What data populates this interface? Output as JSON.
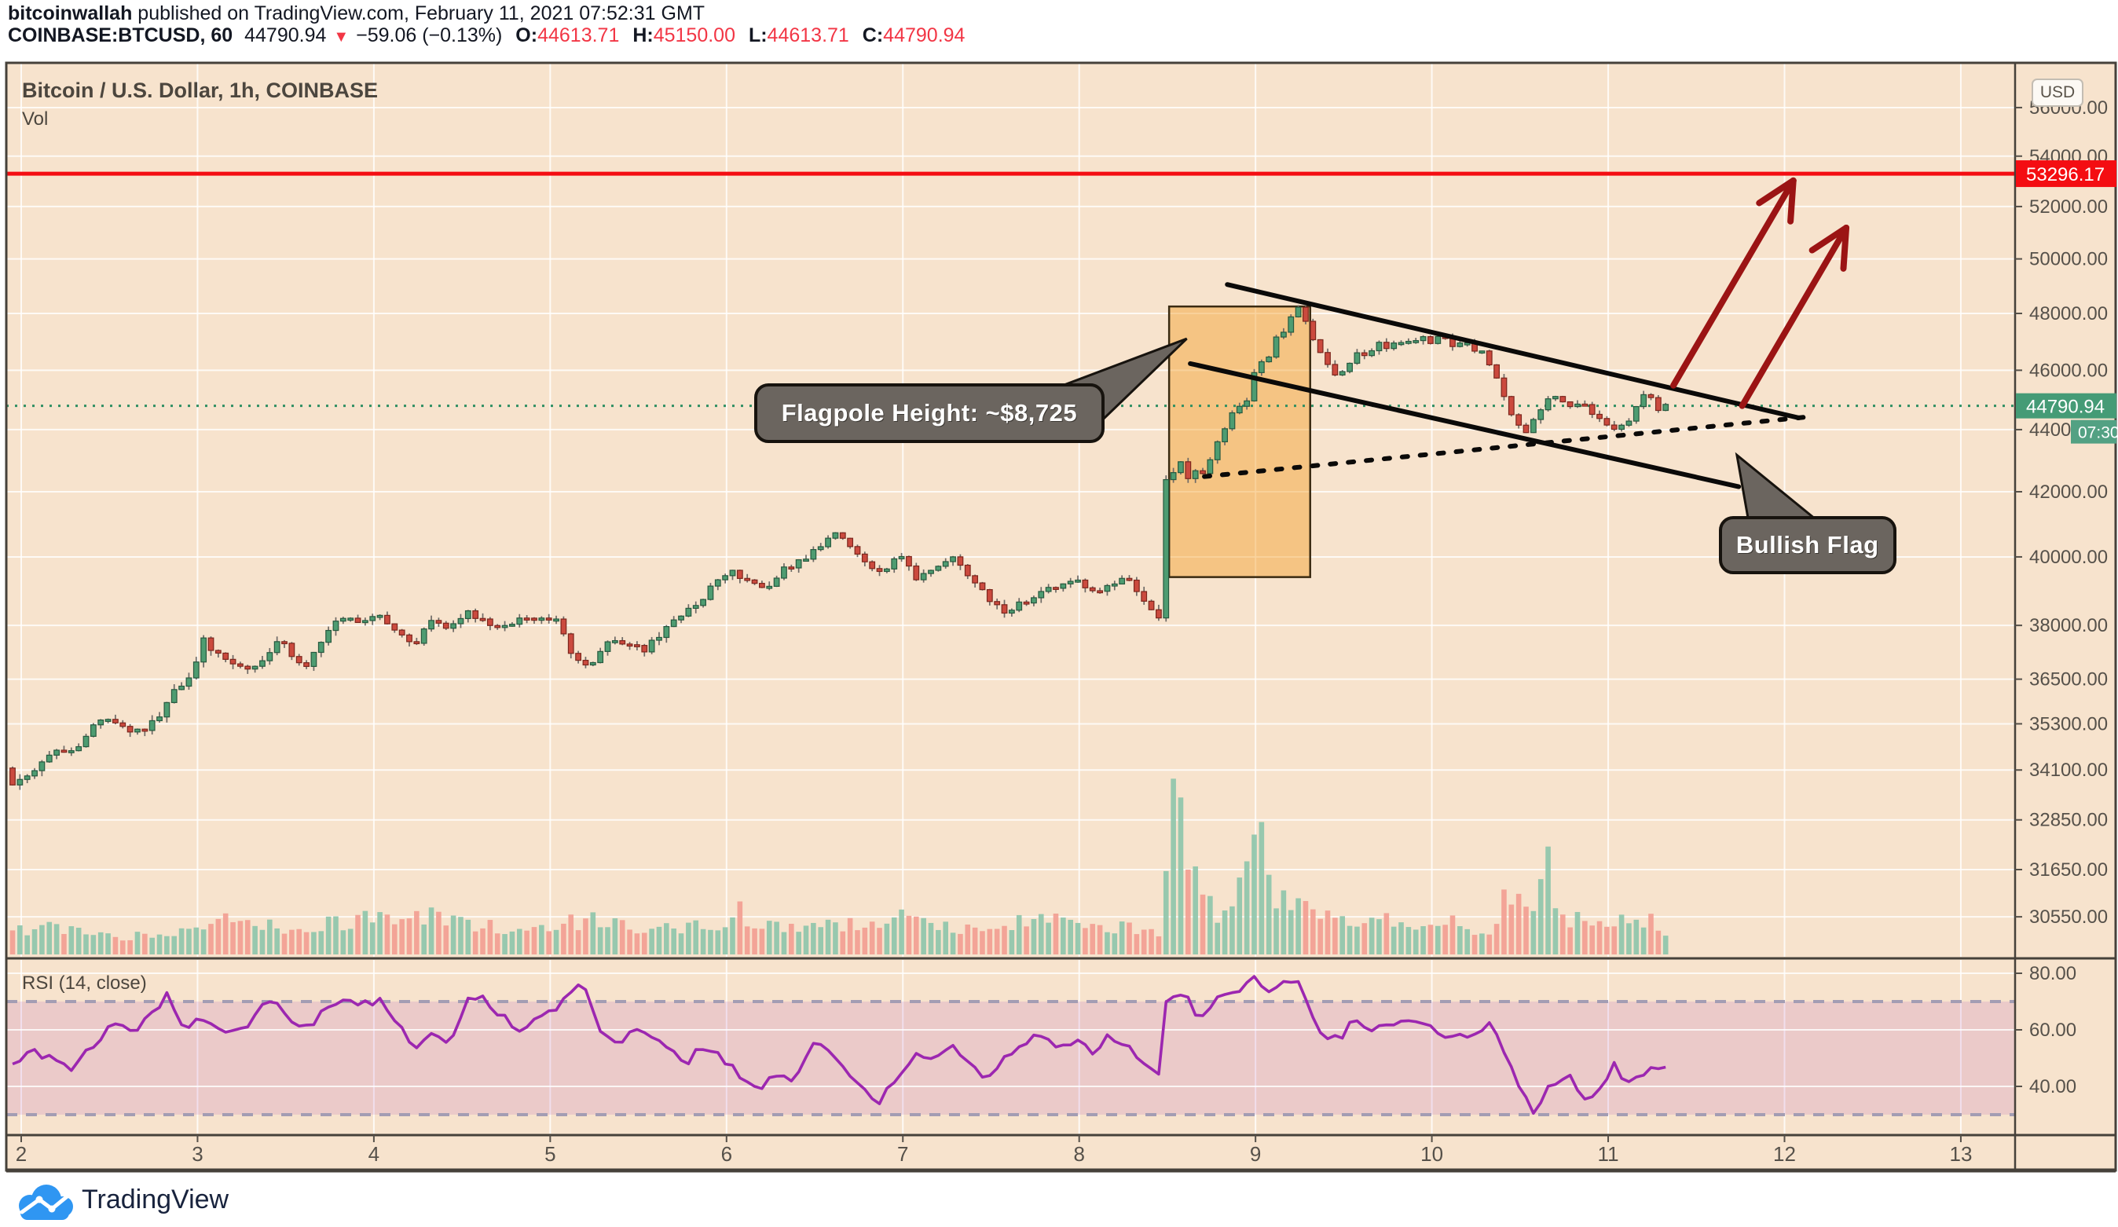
{
  "header": {
    "author": "bitcoinwallah",
    "published": " published on TradingView.com, February 11, 2021 07:52:31 GMT",
    "symbol": "COINBASE:BTCUSD, 60",
    "last": "44790.94",
    "direction": "▼",
    "change": "−59.06 (−0.13%)",
    "ohlc": [
      {
        "k": "O:",
        "v": "44613.71"
      },
      {
        "k": "H:",
        "v": "45150.00"
      },
      {
        "k": "L:",
        "v": "44613.71"
      },
      {
        "k": "C:",
        "v": "44790.94"
      }
    ]
  },
  "chart": {
    "title": "Bitcoin / U.S. Dollar, 1h, COINBASE",
    "vol_label": "Vol",
    "currency_button": "USD",
    "rsi_label": "RSI (14, close)",
    "last_price_label": "44790.94",
    "countdown": "07:30",
    "red_line_label": "53296.17"
  },
  "axes": {
    "price_ticks": [
      {
        "label": "56000.00",
        "price": 56000
      },
      {
        "label": "54000.00",
        "price": 54000
      },
      {
        "label": "52000.00",
        "price": 52000
      },
      {
        "label": "50000.00",
        "price": 50000
      },
      {
        "label": "48000.00",
        "price": 48000
      },
      {
        "label": "46000.00",
        "price": 46000
      },
      {
        "label": "44000.00",
        "price": 44000
      },
      {
        "label": "42000.00",
        "price": 42000
      },
      {
        "label": "40000.00",
        "price": 40000
      },
      {
        "label": "38000.00",
        "price": 38000
      },
      {
        "label": "36500.00",
        "price": 36500
      },
      {
        "label": "35300.00",
        "price": 35300
      },
      {
        "label": "34100.00",
        "price": 34100
      },
      {
        "label": "32850.00",
        "price": 32850
      },
      {
        "label": "31650.00",
        "price": 31650
      },
      {
        "label": "30550.00",
        "price": 30550
      }
    ],
    "time_ticks": [
      {
        "label": "2",
        "day": 2
      },
      {
        "label": "3",
        "day": 3
      },
      {
        "label": "4",
        "day": 4
      },
      {
        "label": "5",
        "day": 5
      },
      {
        "label": "6",
        "day": 6
      },
      {
        "label": "7",
        "day": 7
      },
      {
        "label": "8",
        "day": 8
      },
      {
        "label": "9",
        "day": 9
      },
      {
        "label": "10",
        "day": 10
      },
      {
        "label": "11",
        "day": 11
      },
      {
        "label": "12",
        "day": 12
      },
      {
        "label": "13",
        "day": 13
      }
    ],
    "rsi_ticks": [
      {
        "label": "80.00",
        "value": 80
      },
      {
        "label": "60.00",
        "value": 60
      },
      {
        "label": "40.00",
        "value": 40
      }
    ]
  },
  "chart_data": {
    "type": "candlestick+volume+rsi",
    "symbol": "COINBASE:BTCUSD",
    "timeframe": "1h",
    "x_axis": {
      "unit": "day of February 2021",
      "range": [
        2,
        13
      ],
      "candles_start": 1.93,
      "candles_end": 11.34
    },
    "y_axis": {
      "scale": "log",
      "visible_range": [
        30000,
        56800
      ]
    },
    "levels": {
      "resistance": 53296.17,
      "last_price": 44790.94,
      "rsi_band": [
        30,
        70
      ]
    },
    "price_path_keypoints": [
      [
        1.93,
        34150
      ],
      [
        1.97,
        33750
      ],
      [
        2.0,
        33900
      ],
      [
        2.1,
        34100
      ],
      [
        2.2,
        34600
      ],
      [
        2.3,
        34500
      ],
      [
        2.45,
        35400
      ],
      [
        2.55,
        35300
      ],
      [
        2.7,
        35050
      ],
      [
        2.8,
        35500
      ],
      [
        2.9,
        36300
      ],
      [
        3.0,
        36600
      ],
      [
        3.05,
        37750
      ],
      [
        3.1,
        37300
      ],
      [
        3.2,
        36900
      ],
      [
        3.3,
        36700
      ],
      [
        3.4,
        37100
      ],
      [
        3.5,
        37650
      ],
      [
        3.55,
        37100
      ],
      [
        3.65,
        36900
      ],
      [
        3.75,
        37800
      ],
      [
        3.85,
        38250
      ],
      [
        3.95,
        38050
      ],
      [
        4.05,
        38300
      ],
      [
        4.15,
        37900
      ],
      [
        4.25,
        37350
      ],
      [
        4.35,
        38250
      ],
      [
        4.45,
        37900
      ],
      [
        4.55,
        38400
      ],
      [
        4.65,
        38100
      ],
      [
        4.75,
        37900
      ],
      [
        4.85,
        38200
      ],
      [
        4.95,
        38100
      ],
      [
        5.05,
        38300
      ],
      [
        5.15,
        37000
      ],
      [
        5.25,
        36800
      ],
      [
        5.35,
        37600
      ],
      [
        5.45,
        37500
      ],
      [
        5.55,
        37300
      ],
      [
        5.65,
        37800
      ],
      [
        5.75,
        38200
      ],
      [
        5.85,
        38600
      ],
      [
        5.95,
        39200
      ],
      [
        6.05,
        39650
      ],
      [
        6.15,
        39200
      ],
      [
        6.25,
        39000
      ],
      [
        6.35,
        39650
      ],
      [
        6.45,
        39900
      ],
      [
        6.55,
        40350
      ],
      [
        6.65,
        40700
      ],
      [
        6.7,
        40350
      ],
      [
        6.8,
        39900
      ],
      [
        6.9,
        39550
      ],
      [
        7.0,
        40050
      ],
      [
        7.1,
        39350
      ],
      [
        7.2,
        39700
      ],
      [
        7.3,
        40000
      ],
      [
        7.4,
        39350
      ],
      [
        7.5,
        38800
      ],
      [
        7.6,
        38350
      ],
      [
        7.7,
        38650
      ],
      [
        7.8,
        38950
      ],
      [
        7.9,
        39150
      ],
      [
        8.0,
        39350
      ],
      [
        8.1,
        38950
      ],
      [
        8.2,
        39200
      ],
      [
        8.3,
        39400
      ],
      [
        8.4,
        38600
      ],
      [
        8.48,
        38100
      ],
      [
        8.52,
        43200
      ],
      [
        8.56,
        42600
      ],
      [
        8.6,
        42900
      ],
      [
        8.64,
        42400
      ],
      [
        8.68,
        42700
      ],
      [
        8.72,
        42500
      ],
      [
        8.78,
        43300
      ],
      [
        8.84,
        43900
      ],
      [
        8.88,
        44400
      ],
      [
        8.92,
        44900
      ],
      [
        8.96,
        44600
      ],
      [
        9.0,
        45600
      ],
      [
        9.04,
        46350
      ],
      [
        9.08,
        46200
      ],
      [
        9.12,
        47000
      ],
      [
        9.16,
        47400
      ],
      [
        9.2,
        47200
      ],
      [
        9.24,
        48550
      ],
      [
        9.28,
        48100
      ],
      [
        9.32,
        47500
      ],
      [
        9.36,
        46900
      ],
      [
        9.42,
        46350
      ],
      [
        9.48,
        45850
      ],
      [
        9.54,
        46150
      ],
      [
        9.6,
        46550
      ],
      [
        9.66,
        46450
      ],
      [
        9.72,
        46950
      ],
      [
        9.78,
        46750
      ],
      [
        9.84,
        47050
      ],
      [
        9.9,
        46900
      ],
      [
        9.96,
        47150
      ],
      [
        10.02,
        46950
      ],
      [
        10.08,
        47300
      ],
      [
        10.14,
        46800
      ],
      [
        10.2,
        47050
      ],
      [
        10.26,
        46700
      ],
      [
        10.32,
        46550
      ],
      [
        10.38,
        45900
      ],
      [
        10.44,
        44900
      ],
      [
        10.5,
        44150
      ],
      [
        10.56,
        43800
      ],
      [
        10.62,
        44550
      ],
      [
        10.68,
        44950
      ],
      [
        10.74,
        45150
      ],
      [
        10.8,
        44750
      ],
      [
        10.86,
        44950
      ],
      [
        10.92,
        44550
      ],
      [
        10.98,
        44300
      ],
      [
        11.04,
        43950
      ],
      [
        11.1,
        44100
      ],
      [
        11.16,
        44450
      ],
      [
        11.22,
        45250
      ],
      [
        11.26,
        45050
      ],
      [
        11.3,
        44650
      ],
      [
        11.34,
        44790
      ]
    ],
    "volume_keypoints": [
      [
        1.93,
        10
      ],
      [
        2.2,
        12
      ],
      [
        2.5,
        9
      ],
      [
        2.8,
        7
      ],
      [
        3.0,
        13
      ],
      [
        3.2,
        17
      ],
      [
        3.5,
        12
      ],
      [
        3.8,
        14
      ],
      [
        4.0,
        16
      ],
      [
        4.2,
        20
      ],
      [
        4.5,
        13
      ],
      [
        4.8,
        11
      ],
      [
        5.0,
        12
      ],
      [
        5.2,
        16
      ],
      [
        5.5,
        10
      ],
      [
        5.8,
        12
      ],
      [
        6.0,
        14
      ],
      [
        6.05,
        33
      ],
      [
        6.1,
        16
      ],
      [
        6.3,
        11
      ],
      [
        6.5,
        12
      ],
      [
        6.7,
        14
      ],
      [
        7.0,
        17
      ],
      [
        7.2,
        13
      ],
      [
        7.5,
        12
      ],
      [
        7.7,
        15
      ],
      [
        8.0,
        14
      ],
      [
        8.2,
        12
      ],
      [
        8.35,
        10
      ],
      [
        8.45,
        11
      ],
      [
        8.5,
        56
      ],
      [
        8.53,
        99
      ],
      [
        8.57,
        42
      ],
      [
        8.62,
        30
      ],
      [
        8.67,
        35
      ],
      [
        8.72,
        27
      ],
      [
        8.77,
        18
      ],
      [
        8.82,
        15
      ],
      [
        8.87,
        24
      ],
      [
        8.92,
        40
      ],
      [
        8.97,
        49
      ],
      [
        9.02,
        46
      ],
      [
        9.07,
        30
      ],
      [
        9.12,
        23
      ],
      [
        9.2,
        26
      ],
      [
        9.3,
        24
      ],
      [
        9.4,
        18
      ],
      [
        9.5,
        16
      ],
      [
        9.6,
        18
      ],
      [
        9.7,
        16
      ],
      [
        9.8,
        14
      ],
      [
        9.9,
        13
      ],
      [
        10.0,
        16
      ],
      [
        10.1,
        14
      ],
      [
        10.2,
        12
      ],
      [
        10.3,
        11
      ],
      [
        10.45,
        31
      ],
      [
        10.5,
        20
      ],
      [
        10.55,
        14
      ],
      [
        10.62,
        48
      ],
      [
        10.67,
        26
      ],
      [
        10.72,
        18
      ],
      [
        10.8,
        15
      ],
      [
        10.9,
        13
      ],
      [
        11.0,
        11
      ],
      [
        11.07,
        24
      ],
      [
        11.12,
        14
      ],
      [
        11.2,
        16
      ],
      [
        11.3,
        9
      ]
    ],
    "rsi_keypoints": [
      [
        1.93,
        47
      ],
      [
        2.0,
        49
      ],
      [
        2.1,
        52
      ],
      [
        2.2,
        49
      ],
      [
        2.3,
        46
      ],
      [
        2.45,
        56
      ],
      [
        2.55,
        62
      ],
      [
        2.65,
        58
      ],
      [
        2.75,
        66
      ],
      [
        2.85,
        72
      ],
      [
        2.95,
        61
      ],
      [
        3.05,
        64
      ],
      [
        3.15,
        60
      ],
      [
        3.25,
        58
      ],
      [
        3.35,
        66
      ],
      [
        3.45,
        70
      ],
      [
        3.55,
        63
      ],
      [
        3.65,
        60
      ],
      [
        3.75,
        68
      ],
      [
        3.85,
        71
      ],
      [
        3.95,
        69
      ],
      [
        4.05,
        71
      ],
      [
        4.15,
        63
      ],
      [
        4.25,
        54
      ],
      [
        4.35,
        58
      ],
      [
        4.45,
        56
      ],
      [
        4.55,
        70
      ],
      [
        4.65,
        71
      ],
      [
        4.75,
        65
      ],
      [
        4.85,
        60
      ],
      [
        4.95,
        63
      ],
      [
        5.05,
        67
      ],
      [
        5.15,
        74
      ],
      [
        5.2,
        77
      ],
      [
        5.3,
        60
      ],
      [
        5.4,
        55
      ],
      [
        5.5,
        62
      ],
      [
        5.6,
        58
      ],
      [
        5.7,
        52
      ],
      [
        5.8,
        49
      ],
      [
        5.9,
        55
      ],
      [
        6.0,
        50
      ],
      [
        6.1,
        43
      ],
      [
        6.2,
        38
      ],
      [
        6.3,
        45
      ],
      [
        6.4,
        42
      ],
      [
        6.5,
        55
      ],
      [
        6.6,
        53
      ],
      [
        6.7,
        44
      ],
      [
        6.8,
        38
      ],
      [
        6.9,
        35
      ],
      [
        7.0,
        45
      ],
      [
        7.1,
        52
      ],
      [
        7.2,
        49
      ],
      [
        7.3,
        55
      ],
      [
        7.4,
        47
      ],
      [
        7.5,
        42
      ],
      [
        7.6,
        50
      ],
      [
        7.7,
        56
      ],
      [
        7.8,
        58
      ],
      [
        7.9,
        54
      ],
      [
        8.0,
        57
      ],
      [
        8.1,
        52
      ],
      [
        8.2,
        58
      ],
      [
        8.3,
        54
      ],
      [
        8.4,
        47
      ],
      [
        8.48,
        44
      ],
      [
        8.52,
        76
      ],
      [
        8.56,
        71
      ],
      [
        8.6,
        74
      ],
      [
        8.65,
        69
      ],
      [
        8.7,
        65
      ],
      [
        8.8,
        71
      ],
      [
        8.9,
        73
      ],
      [
        9.0,
        79
      ],
      [
        9.05,
        75
      ],
      [
        9.1,
        72
      ],
      [
        9.15,
        75
      ],
      [
        9.2,
        77
      ],
      [
        9.25,
        80
      ],
      [
        9.3,
        72
      ],
      [
        9.35,
        64
      ],
      [
        9.4,
        56
      ],
      [
        9.45,
        59
      ],
      [
        9.5,
        57
      ],
      [
        9.55,
        61
      ],
      [
        9.6,
        63
      ],
      [
        9.7,
        60
      ],
      [
        9.8,
        63
      ],
      [
        9.9,
        64
      ],
      [
        10.0,
        61
      ],
      [
        10.1,
        57
      ],
      [
        10.15,
        56
      ],
      [
        10.2,
        58
      ],
      [
        10.3,
        61
      ],
      [
        10.35,
        62
      ],
      [
        10.4,
        57
      ],
      [
        10.45,
        49
      ],
      [
        10.5,
        43
      ],
      [
        10.55,
        36
      ],
      [
        10.6,
        30
      ],
      [
        10.65,
        34
      ],
      [
        10.7,
        43
      ],
      [
        10.75,
        40
      ],
      [
        10.8,
        45
      ],
      [
        10.85,
        37
      ],
      [
        10.9,
        34
      ],
      [
        10.95,
        38
      ],
      [
        11.0,
        41
      ],
      [
        11.05,
        49
      ],
      [
        11.1,
        43
      ],
      [
        11.15,
        40
      ],
      [
        11.2,
        44
      ],
      [
        11.25,
        47
      ],
      [
        11.3,
        45
      ],
      [
        11.34,
        46
      ]
    ],
    "annotations": {
      "flagpole_box": {
        "day_start": 8.51,
        "day_end": 9.31,
        "price_top": 48250,
        "price_bottom": 39400
      },
      "flag_upper_line": {
        "from": [
          8.84,
          49050
        ],
        "to": [
          12.08,
          44390
        ]
      },
      "flag_lower_line": {
        "from": [
          8.63,
          46230
        ],
        "to": [
          11.74,
          42160
        ]
      },
      "dotted_support_line": {
        "from": [
          8.71,
          42480
        ],
        "to": [
          12.13,
          44420
        ]
      },
      "arrows": [
        {
          "from": [
            11.37,
            45480
          ],
          "to": [
            12.05,
            53020
          ]
        },
        {
          "from": [
            11.76,
            44790
          ],
          "to": [
            12.35,
            51180
          ]
        }
      ],
      "flagpole_label": {
        "text": "Flagpole Height: ~$8,725",
        "center": [
          7.15,
          44545
        ],
        "tip": [
          8.61,
          47100
        ]
      },
      "bullish_label": {
        "text": "Bullish Flag",
        "center": [
          12.13,
          40350
        ],
        "tip": [
          11.73,
          43170
        ]
      }
    }
  },
  "colors": {
    "background": "#f7e3cd",
    "grid": "rgba(255,255,255,0.8)",
    "frame": "#46413a",
    "axis_text": "#56514a",
    "candle_up": "#4e9c71",
    "candle_up_border": "#27593f",
    "candle_down": "#cb4a3e",
    "candle_down_border": "#7c261d",
    "wick": "#6e6a66",
    "volume_up": "#8ec6ab",
    "volume_down": "#f29e92",
    "red_line": "#f40d12",
    "red_label_bg": "#f40d12",
    "green_label_bg": "#459b76",
    "countdown_bg": "#53a183",
    "price_dotted": "#2f8f63",
    "rsi_line": "#9c27b0",
    "rsi_band_fill": "rgba(156,39,176,0.13)",
    "rsi_band_dash": "#a39db3",
    "drawing_black": "#0b0a09",
    "arrow_red": "#9b1414",
    "flagpole_box_fill": "rgba(242,153,29,0.42)",
    "flagpole_box_border": "#3a2b12",
    "callout_bg": "#6b655f",
    "logo_blue": "#2f96f2"
  },
  "footer": {
    "brand": "TradingView"
  }
}
